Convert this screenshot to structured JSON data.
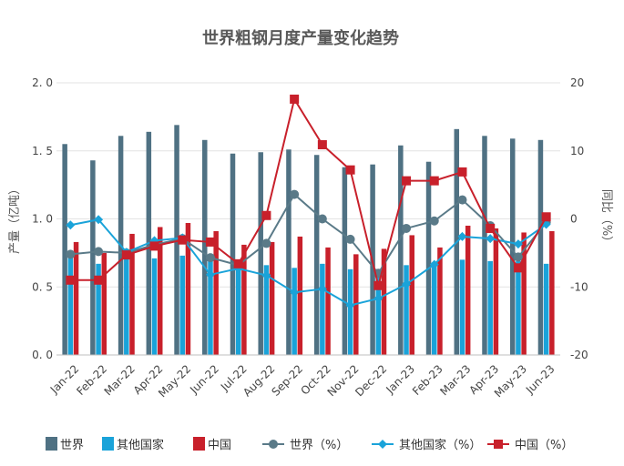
{
  "chart_data": {
    "type": "bar",
    "title": "世界粗钢月度产量变化趋势",
    "ylabel": "产量（亿吨）",
    "y2label": "同比（%）",
    "ylim": [
      0,
      2.0
    ],
    "y2lim": [
      -20,
      20
    ],
    "yticks": [
      "0. 0",
      "0. 5",
      "1. 0",
      "1. 5",
      "2. 0"
    ],
    "y2ticks": [
      "-20",
      "-10",
      "0",
      "10",
      "20"
    ],
    "categories": [
      "Jan-22",
      "Feb-22",
      "Mar-22",
      "Apr-22",
      "May-22",
      "Jun-22",
      "Jul-22",
      "Aug-22",
      "Sep-22",
      "Oct-22",
      "Nov-22",
      "Dec-22",
      "Jan-23",
      "Feb-23",
      "Mar-23",
      "Apr-23",
      "May-23",
      "Jun-23"
    ],
    "series": [
      {
        "name": "世界",
        "kind": "bar",
        "color": "#4f7183",
        "values": [
          1.55,
          1.43,
          1.61,
          1.64,
          1.69,
          1.58,
          1.48,
          1.49,
          1.51,
          1.47,
          1.38,
          1.4,
          1.54,
          1.42,
          1.66,
          1.61,
          1.59,
          1.58
        ]
      },
      {
        "name": "其他国家",
        "kind": "bar",
        "color": "#1aa3d9",
        "values": [
          0.75,
          0.67,
          0.72,
          0.71,
          0.73,
          0.69,
          0.67,
          0.66,
          0.64,
          0.67,
          0.63,
          0.63,
          0.66,
          0.66,
          0.7,
          0.69,
          0.69,
          0.67
        ]
      },
      {
        "name": "中国",
        "kind": "bar",
        "color": "#c8202b",
        "values": [
          0.83,
          0.75,
          0.89,
          0.94,
          0.97,
          0.91,
          0.81,
          0.83,
          0.87,
          0.79,
          0.74,
          0.78,
          0.88,
          0.79,
          0.95,
          0.93,
          0.9,
          0.91
        ]
      },
      {
        "name": "世界（%）",
        "kind": "line",
        "color": "#5a7a88",
        "marker": "circle",
        "values": [
          -5.2,
          -4.8,
          -5.0,
          -3.8,
          -2.9,
          -5.7,
          -6.8,
          -3.6,
          3.6,
          0.0,
          -3.0,
          -8.0,
          -1.4,
          -0.3,
          2.8,
          -1.0,
          -5.6,
          -0.5
        ]
      },
      {
        "name": "其他国家（%）",
        "kind": "line",
        "color": "#1aa3d9",
        "marker": "diamond",
        "values": [
          -0.9,
          -0.1,
          -4.9,
          -3.2,
          -2.8,
          -8.2,
          -7.3,
          -8.3,
          -10.8,
          -10.3,
          -12.7,
          -11.7,
          -9.6,
          -6.7,
          -2.6,
          -2.9,
          -3.7,
          -0.8
        ]
      },
      {
        "name": "中国（%）",
        "kind": "line",
        "color": "#c8202b",
        "marker": "square",
        "values": [
          -9.0,
          -9.0,
          -5.3,
          -4.0,
          -3.1,
          -3.4,
          -6.6,
          0.5,
          17.6,
          10.9,
          7.2,
          -9.8,
          5.6,
          5.6,
          6.9,
          -1.4,
          -7.2,
          0.3
        ]
      }
    ]
  }
}
